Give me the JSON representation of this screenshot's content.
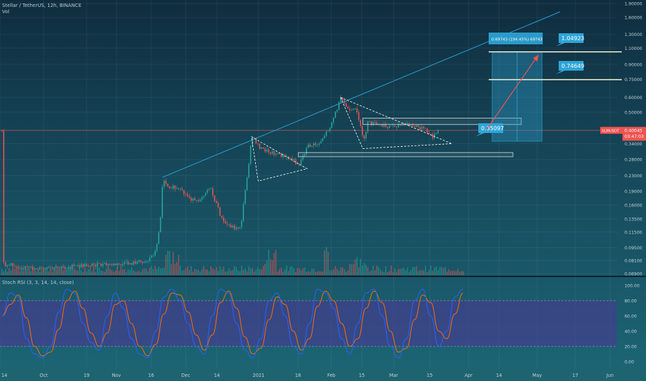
{
  "header": {
    "title": "Stellar / TetherUS, 12h, BINANCE",
    "vol_label": "Vol",
    "rsi_label": "Stoch RSI (3, 3, 14, 14, close)"
  },
  "colors": {
    "up": "#26a69a",
    "down": "#ef5350",
    "rsi_k": "#2962ff",
    "rsi_d": "#ff6d00",
    "trend": "#2a9fd6",
    "price_line": "#ef5350",
    "target_line": "#e8e4c8",
    "callout": "#2fa5d8",
    "projection_arrow": "#ef5350"
  },
  "chart_data": {
    "type": "candlestick",
    "symbol": "Stellar / TetherUS",
    "interval": "12h",
    "exchange": "BINANCE",
    "scale": "log",
    "x_ticks": [
      "14",
      "Oct",
      "19",
      "Nov",
      "16",
      "Dec",
      "14",
      "2021",
      "18",
      "Feb",
      "15",
      "Mar",
      "15",
      "Apr",
      "14",
      "May",
      "17",
      "Jun"
    ],
    "y_ticks": [
      "1.90000",
      "1.60000",
      "1.30000",
      "1.10000",
      "0.90000",
      "0.75000",
      "0.60000",
      "0.50000",
      "0.40000",
      "0.34000",
      "0.28000",
      "0.23000",
      "0.19000",
      "0.16000",
      "0.13500",
      "0.11500",
      "0.09500",
      "0.08100",
      "0.06900"
    ],
    "last_price": "0.40045",
    "last_price_tag": "XLMUSDT",
    "countdown": "03:47:03",
    "price_path": [
      [
        "2020-09-14",
        0.078
      ],
      [
        "2020-09-25",
        0.074
      ],
      [
        "2020-10-05",
        0.073
      ],
      [
        "2020-10-14",
        0.075
      ],
      [
        "2020-10-25",
        0.077
      ],
      [
        "2020-11-05",
        0.077
      ],
      [
        "2020-11-12",
        0.079
      ],
      [
        "2020-11-18",
        0.081
      ],
      [
        "2020-11-22",
        0.092
      ],
      [
        "2020-11-24",
        0.142
      ],
      [
        "2020-11-25",
        0.225
      ],
      [
        "2020-11-27",
        0.205
      ],
      [
        "2020-12-03",
        0.19
      ],
      [
        "2020-12-10",
        0.165
      ],
      [
        "2020-12-16",
        0.2
      ],
      [
        "2020-12-22",
        0.13
      ],
      [
        "2020-12-28",
        0.12
      ],
      [
        "2020-12-30",
        0.125
      ],
      [
        "2021-01-02",
        0.24
      ],
      [
        "2021-01-04",
        0.37
      ],
      [
        "2021-01-08",
        0.32
      ],
      [
        "2021-01-15",
        0.3
      ],
      [
        "2021-01-22",
        0.28
      ],
      [
        "2021-01-25",
        0.265
      ],
      [
        "2021-01-29",
        0.33
      ],
      [
        "2021-02-03",
        0.34
      ],
      [
        "2021-02-08",
        0.42
      ],
      [
        "2021-02-13",
        0.59
      ],
      [
        "2021-02-17",
        0.5
      ],
      [
        "2021-02-20",
        0.52
      ],
      [
        "2021-02-23",
        0.35
      ],
      [
        "2021-02-25",
        0.44
      ],
      [
        "2021-03-05",
        0.42
      ],
      [
        "2021-03-15",
        0.43
      ],
      [
        "2021-03-22",
        0.41
      ],
      [
        "2021-03-26",
        0.37
      ],
      [
        "2021-03-29",
        0.4
      ]
    ],
    "stoch_rsi": {
      "ticks": [
        "100.00",
        "80.00",
        "60.00",
        "40.00",
        "20.00",
        "0.00"
      ],
      "overbought": 80,
      "oversold": 20,
      "k": [
        60,
        90,
        85,
        30,
        10,
        5,
        20,
        65,
        95,
        90,
        50,
        25,
        15,
        60,
        90,
        70,
        30,
        10,
        5,
        40,
        85,
        95,
        80,
        50,
        20,
        10,
        60,
        95,
        90,
        50,
        15,
        5,
        30,
        80,
        90,
        60,
        20,
        10,
        50,
        95,
        90,
        70,
        30,
        10,
        50,
        90,
        95,
        60,
        20,
        5,
        30,
        80,
        95,
        60,
        20,
        40,
        85,
        95
      ]
    },
    "annotations": {
      "target_high": "1.04923",
      "target_mid": "0.74649",
      "entry": "0.35097",
      "measure_label": "0.69743 (194.45%) 69743"
    }
  }
}
